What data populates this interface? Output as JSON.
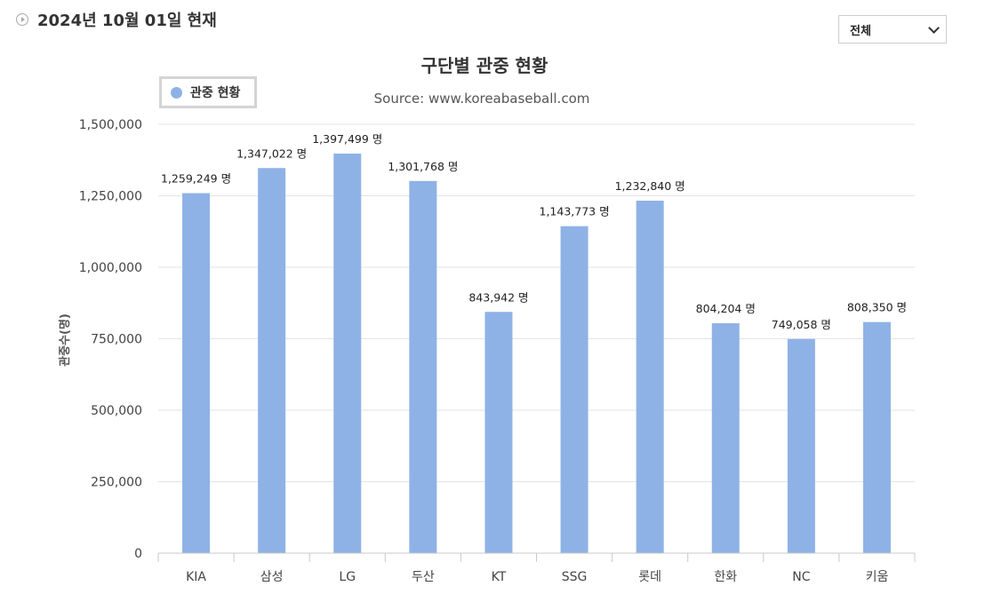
{
  "header": {
    "date_text": "2024년 10월 01일 현재"
  },
  "filter": {
    "selected": "전체"
  },
  "colors": {
    "bar": "#8eb2e6",
    "grid": "#e3e3e3",
    "axis": "#c8c8c8"
  },
  "chart_data": {
    "type": "bar",
    "title": "구단별 관중 현황",
    "subtitle": "Source: www.koreabaseball.com",
    "ylabel": "관중수(명)",
    "xlabel": "",
    "ylim": [
      0,
      1500000
    ],
    "yticks": [
      0,
      250000,
      500000,
      750000,
      1000000,
      1250000,
      1500000
    ],
    "ytick_labels": [
      "0",
      "250,000",
      "500,000",
      "750,000",
      "1,000,000",
      "1,250,000",
      "1,500,000"
    ],
    "grid": true,
    "legend": {
      "position": "top-left",
      "label": "관중 현황"
    },
    "categories": [
      "KIA",
      "삼성",
      "LG",
      "두산",
      "KT",
      "SSG",
      "롯데",
      "한화",
      "NC",
      "키움"
    ],
    "series": [
      {
        "name": "관중 현황",
        "values": [
          1259249,
          1347022,
          1397499,
          1301768,
          843942,
          1143773,
          1232840,
          804204,
          749058,
          808350
        ],
        "labels": [
          "1,259,249 명",
          "1,347,022 명",
          "1,397,499 명",
          "1,301,768 명",
          "843,942 명",
          "1,143,773 명",
          "1,232,840 명",
          "804,204 명",
          "749,058 명",
          "808,350 명"
        ]
      }
    ]
  }
}
